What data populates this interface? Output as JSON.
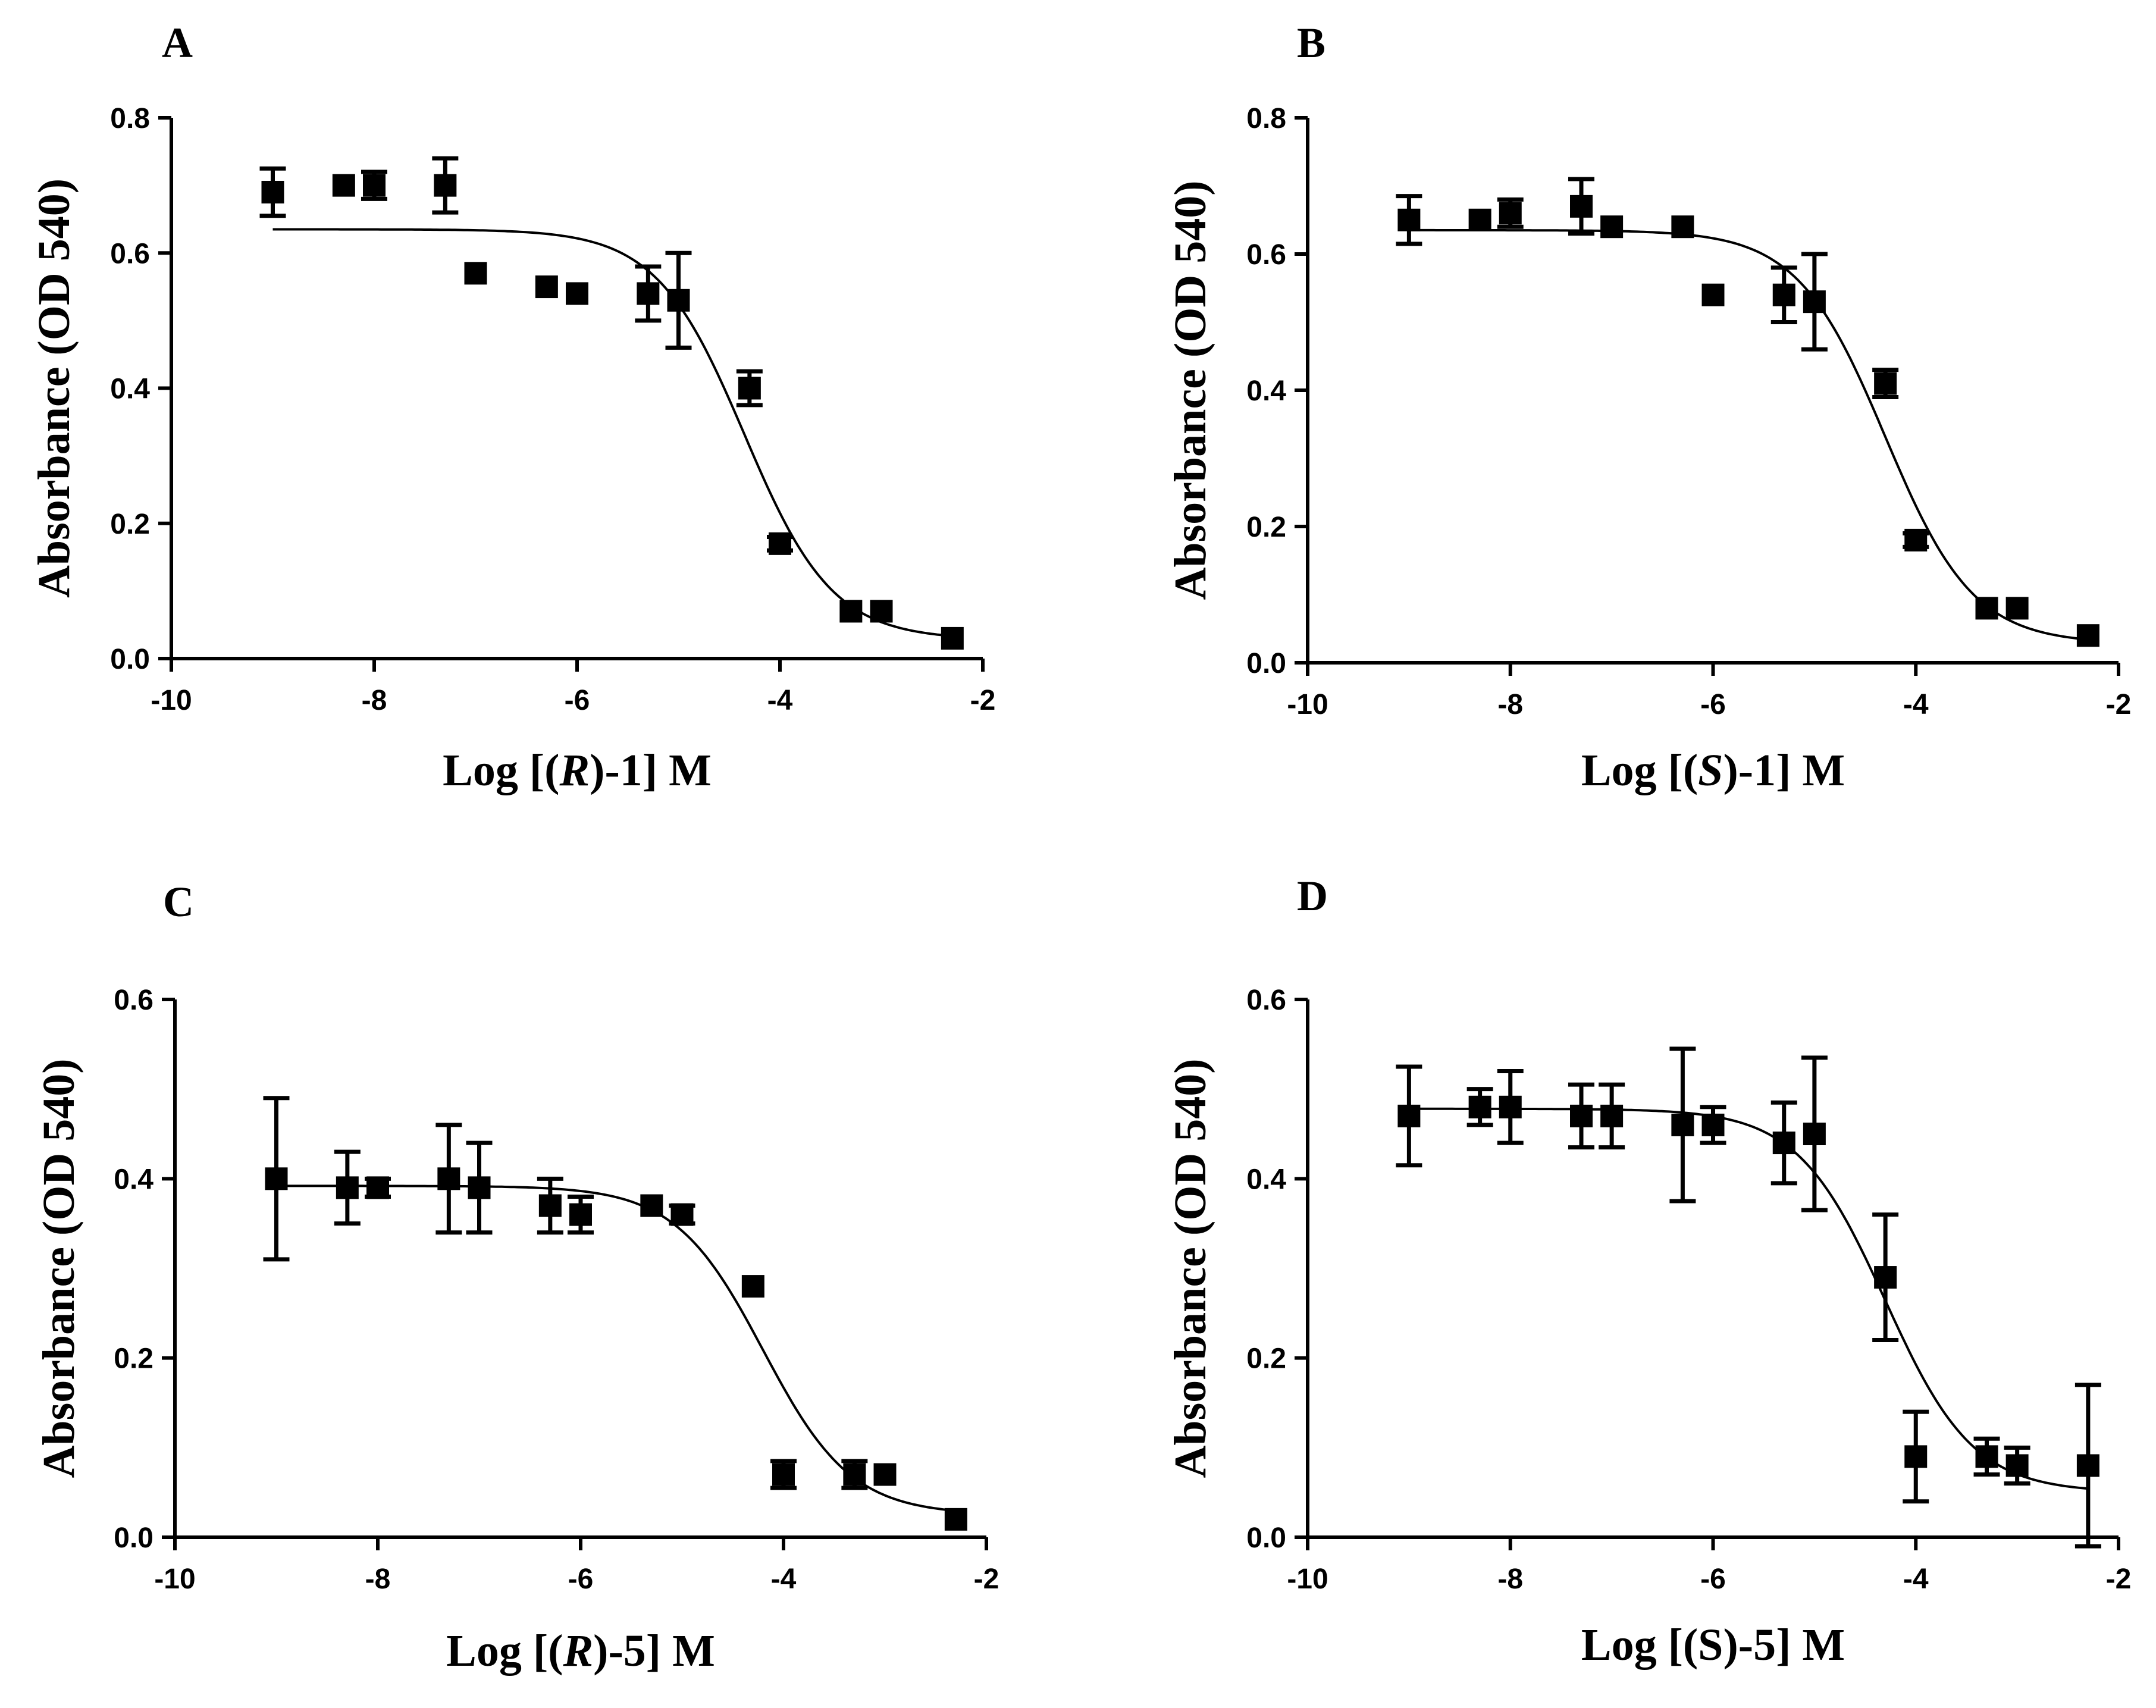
{
  "figure": {
    "colors": {
      "ink": "#000000",
      "background": "#ffffff"
    },
    "x_ticks": [
      "-10",
      "-8",
      "-6",
      "-4",
      "-2"
    ]
  },
  "chart_data": [
    {
      "panel": "A",
      "type": "scatter",
      "title": "",
      "xlabel_parts": [
        {
          "t": "Log [(",
          "i": false
        },
        {
          "t": "R",
          "i": true
        },
        {
          "t": ")-1] M",
          "i": false
        }
      ],
      "ylabel": "Absorbance (OD 540)",
      "xlim": [
        -10,
        -2
      ],
      "ylim": [
        0,
        0.8
      ],
      "xticks": [
        -10,
        -8,
        -6,
        -4,
        -2
      ],
      "yticks": [
        0.0,
        0.2,
        0.4,
        0.6,
        0.8
      ],
      "ytick_labels": [
        "0.0",
        "0.2",
        "0.4",
        "0.6",
        "0.8"
      ],
      "points": [
        {
          "x": -9.0,
          "y": 0.69,
          "err": 0.035
        },
        {
          "x": -8.3,
          "y": 0.7,
          "err": 0
        },
        {
          "x": -8.0,
          "y": 0.7,
          "err": 0.02
        },
        {
          "x": -7.3,
          "y": 0.7,
          "err": 0.04
        },
        {
          "x": -7.0,
          "y": 0.57,
          "err": 0
        },
        {
          "x": -6.3,
          "y": 0.55,
          "err": 0
        },
        {
          "x": -6.0,
          "y": 0.54,
          "err": 0
        },
        {
          "x": -5.3,
          "y": 0.54,
          "err": 0.04
        },
        {
          "x": -5.0,
          "y": 0.53,
          "err": 0.07
        },
        {
          "x": -4.3,
          "y": 0.4,
          "err": 0.025
        },
        {
          "x": -4.0,
          "y": 0.17,
          "err": 0.01
        },
        {
          "x": -3.3,
          "y": 0.07,
          "err": 0
        },
        {
          "x": -3.0,
          "y": 0.07,
          "err": 0
        },
        {
          "x": -2.3,
          "y": 0.03,
          "err": 0
        }
      ],
      "fit": {
        "model": "sigmoidal dose-response",
        "top": 0.635,
        "bottom": 0.028,
        "log_ic50": -4.35,
        "hill": -1.0,
        "x_from": -9.0,
        "x_to": -2.3
      }
    },
    {
      "panel": "B",
      "type": "scatter",
      "title": "",
      "xlabel_parts": [
        {
          "t": "Log [(",
          "i": false
        },
        {
          "t": "S",
          "i": true
        },
        {
          "t": ")-1] M",
          "i": false
        }
      ],
      "ylabel": "Absorbance (OD 540)",
      "xlim": [
        -10,
        -2
      ],
      "ylim": [
        0,
        0.8
      ],
      "xticks": [
        -10,
        -8,
        -6,
        -4,
        -2
      ],
      "yticks": [
        0.0,
        0.2,
        0.4,
        0.6,
        0.8
      ],
      "ytick_labels": [
        "0.0",
        "0.2",
        "0.4",
        "0.6",
        "0.8"
      ],
      "points": [
        {
          "x": -9.0,
          "y": 0.65,
          "err": 0.035
        },
        {
          "x": -8.3,
          "y": 0.65,
          "err": 0
        },
        {
          "x": -8.0,
          "y": 0.66,
          "err": 0.02
        },
        {
          "x": -7.3,
          "y": 0.67,
          "err": 0.04
        },
        {
          "x": -7.0,
          "y": 0.64,
          "err": 0
        },
        {
          "x": -6.3,
          "y": 0.64,
          "err": 0
        },
        {
          "x": -6.0,
          "y": 0.54,
          "err": 0
        },
        {
          "x": -5.3,
          "y": 0.54,
          "err": 0.04
        },
        {
          "x": -5.0,
          "y": 0.53,
          "err": 0.07
        },
        {
          "x": -4.3,
          "y": 0.41,
          "err": 0.02
        },
        {
          "x": -4.0,
          "y": 0.18,
          "err": 0.01
        },
        {
          "x": -3.3,
          "y": 0.08,
          "err": 0
        },
        {
          "x": -3.0,
          "y": 0.08,
          "err": 0
        },
        {
          "x": -2.3,
          "y": 0.04,
          "err": 0
        }
      ],
      "fit": {
        "model": "sigmoidal dose-response",
        "top": 0.635,
        "bottom": 0.028,
        "log_ic50": -4.3,
        "hill": -1.0,
        "x_from": -9.0,
        "x_to": -2.3
      }
    },
    {
      "panel": "C",
      "type": "scatter",
      "title": "",
      "xlabel_parts": [
        {
          "t": "Log [(",
          "i": false
        },
        {
          "t": "R",
          "i": true
        },
        {
          "t": ")-5] M",
          "i": false
        }
      ],
      "ylabel": "Absorbance (OD 540)",
      "xlim": [
        -10,
        -2
      ],
      "ylim": [
        0,
        0.6
      ],
      "xticks": [
        -10,
        -8,
        -6,
        -4,
        -2
      ],
      "yticks": [
        0.0,
        0.2,
        0.4,
        0.6
      ],
      "ytick_labels": [
        "0.0",
        "0.2",
        "0.4",
        "0.6"
      ],
      "points": [
        {
          "x": -9.0,
          "y": 0.4,
          "err": 0.09
        },
        {
          "x": -8.3,
          "y": 0.39,
          "err": 0.04
        },
        {
          "x": -8.0,
          "y": 0.39,
          "err": 0.01
        },
        {
          "x": -7.3,
          "y": 0.4,
          "err": 0.06
        },
        {
          "x": -7.0,
          "y": 0.39,
          "err": 0.05
        },
        {
          "x": -6.3,
          "y": 0.37,
          "err": 0.03
        },
        {
          "x": -6.0,
          "y": 0.36,
          "err": 0.02
        },
        {
          "x": -5.3,
          "y": 0.37,
          "err": 0
        },
        {
          "x": -5.0,
          "y": 0.36,
          "err": 0.01
        },
        {
          "x": -4.3,
          "y": 0.28,
          "err": 0
        },
        {
          "x": -4.0,
          "y": 0.07,
          "err": 0.015
        },
        {
          "x": -3.3,
          "y": 0.07,
          "err": 0.015
        },
        {
          "x": -3.0,
          "y": 0.07,
          "err": 0
        },
        {
          "x": -2.3,
          "y": 0.02,
          "err": 0
        }
      ],
      "fit": {
        "model": "sigmoidal dose-response",
        "top": 0.392,
        "bottom": 0.025,
        "log_ic50": -4.2,
        "hill": -1.0,
        "x_from": -9.0,
        "x_to": -2.3
      }
    },
    {
      "panel": "D",
      "type": "scatter",
      "title": "",
      "xlabel_parts": [
        {
          "t": "Log [(S)-5] M",
          "i": false
        }
      ],
      "ylabel": "Absorbance (OD 540)",
      "xlim": [
        -10,
        -2
      ],
      "ylim": [
        0,
        0.6
      ],
      "xticks": [
        -10,
        -8,
        -6,
        -4,
        -2
      ],
      "yticks": [
        0.0,
        0.2,
        0.4,
        0.6
      ],
      "ytick_labels": [
        "0.0",
        "0.2",
        "0.4",
        "0.6"
      ],
      "points": [
        {
          "x": -9.0,
          "y": 0.47,
          "err": 0.055
        },
        {
          "x": -8.3,
          "y": 0.48,
          "err": 0.02
        },
        {
          "x": -8.0,
          "y": 0.48,
          "err": 0.04
        },
        {
          "x": -7.3,
          "y": 0.47,
          "err": 0.035
        },
        {
          "x": -7.0,
          "y": 0.47,
          "err": 0.035
        },
        {
          "x": -6.3,
          "y": 0.46,
          "err": 0.085
        },
        {
          "x": -6.0,
          "y": 0.46,
          "err": 0.02
        },
        {
          "x": -5.3,
          "y": 0.44,
          "err": 0.045
        },
        {
          "x": -5.0,
          "y": 0.45,
          "err": 0.085
        },
        {
          "x": -4.3,
          "y": 0.29,
          "err": 0.07
        },
        {
          "x": -4.0,
          "y": 0.09,
          "err": 0.05
        },
        {
          "x": -3.3,
          "y": 0.09,
          "err": 0.02
        },
        {
          "x": -3.0,
          "y": 0.08,
          "err": 0.02
        },
        {
          "x": -2.3,
          "y": 0.08,
          "err": 0.09
        }
      ],
      "fit": {
        "model": "sigmoidal dose-response",
        "top": 0.478,
        "bottom": 0.05,
        "log_ic50": -4.3,
        "hill": -1.0,
        "x_from": -9.0,
        "x_to": -2.3
      }
    }
  ]
}
